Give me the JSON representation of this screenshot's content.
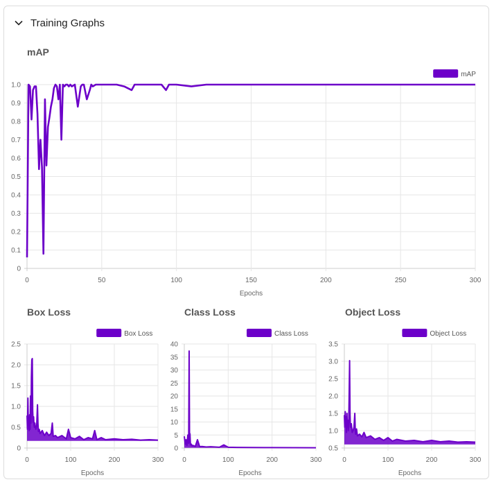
{
  "panel": {
    "title": "Training Graphs"
  },
  "colors": {
    "series": "#6c00c9",
    "grid": "#e6e6e6",
    "axis": "#cccccc"
  },
  "icons": {
    "collapse": "chevron-down-icon"
  },
  "chart_data": [
    {
      "type": "line",
      "title": "mAP",
      "xlabel": "Epochs",
      "ylabel": "",
      "xlim": [
        0,
        300
      ],
      "ylim": [
        0,
        1.0
      ],
      "xticks": [
        0,
        50,
        100,
        150,
        200,
        250,
        300
      ],
      "yticks": [
        0,
        0.1,
        0.2,
        0.3,
        0.4,
        0.5,
        0.6,
        0.7,
        0.8,
        0.9,
        1.0
      ],
      "ytick_labels": [
        "0",
        "0.1",
        "0.2",
        "0.3",
        "0.4",
        "0.5",
        "0.6",
        "0.7",
        "0.8",
        "0.9",
        "1.0"
      ],
      "grid": true,
      "legend": "top-right",
      "series": [
        {
          "name": "mAP",
          "x": [
            0,
            1,
            2,
            3,
            4,
            5,
            6,
            7,
            8,
            9,
            10,
            11,
            12,
            13,
            14,
            15,
            16,
            17,
            18,
            19,
            20,
            21,
            22,
            23,
            24,
            25,
            26,
            27,
            28,
            29,
            30,
            32,
            34,
            36,
            37,
            38,
            40,
            42,
            43,
            44,
            46,
            48,
            50,
            60,
            65,
            70,
            72,
            75,
            80,
            90,
            93,
            95,
            100,
            110,
            120,
            150,
            200,
            250,
            300
          ],
          "y": [
            0.06,
            1.0,
            0.99,
            0.81,
            0.97,
            0.99,
            0.99,
            0.84,
            0.54,
            0.7,
            0.55,
            0.08,
            0.92,
            0.56,
            0.77,
            0.82,
            0.88,
            0.92,
            0.98,
            1.0,
            0.99,
            0.92,
            1.0,
            0.7,
            1.0,
            0.99,
            1.0,
            1.0,
            0.99,
            1.0,
            0.99,
            1.0,
            0.88,
            0.99,
            1.0,
            1.0,
            0.92,
            0.97,
            1.0,
            0.99,
            1.0,
            1.0,
            1.0,
            1.0,
            0.99,
            0.97,
            1.0,
            1.0,
            1.0,
            1.0,
            0.97,
            1.0,
            1.0,
            0.99,
            1.0,
            1.0,
            1.0,
            1.0,
            1.0
          ]
        }
      ]
    },
    {
      "type": "area",
      "title": "Box Loss",
      "xlabel": "Epochs",
      "ylabel": "",
      "xlim": [
        0,
        300
      ],
      "ylim": [
        0,
        2.5
      ],
      "xticks": [
        0,
        100,
        200,
        300
      ],
      "yticks": [
        0,
        0.5,
        1.0,
        1.5,
        2.0,
        2.5
      ],
      "ytick_labels": [
        "0",
        "0.5",
        "1.0",
        "1.5",
        "2.0",
        "2.5"
      ],
      "grid": true,
      "legend": "top-right",
      "series": [
        {
          "name": "Box Loss",
          "x": [
            0,
            1,
            2,
            3,
            4,
            5,
            6,
            7,
            8,
            9,
            10,
            11,
            12,
            13,
            14,
            15,
            16,
            17,
            18,
            20,
            22,
            24,
            25,
            26,
            28,
            30,
            35,
            40,
            45,
            50,
            55,
            58,
            60,
            65,
            70,
            80,
            90,
            95,
            100,
            110,
            120,
            130,
            140,
            150,
            155,
            160,
            170,
            180,
            200,
            220,
            240,
            260,
            280,
            300
          ],
          "y": [
            0.78,
            0.45,
            1.2,
            0.55,
            0.65,
            0.42,
            0.8,
            0.45,
            1.25,
            0.6,
            1.7,
            2.12,
            2.15,
            0.9,
            0.62,
            0.75,
            0.55,
            0.5,
            0.6,
            0.45,
            0.52,
            1.04,
            0.6,
            0.4,
            0.45,
            0.35,
            0.42,
            0.3,
            0.38,
            0.3,
            0.35,
            0.6,
            0.28,
            0.3,
            0.25,
            0.3,
            0.22,
            0.45,
            0.25,
            0.22,
            0.28,
            0.2,
            0.25,
            0.22,
            0.42,
            0.2,
            0.25,
            0.2,
            0.22,
            0.2,
            0.21,
            0.19,
            0.2,
            0.19
          ]
        }
      ]
    },
    {
      "type": "area",
      "title": "Class Loss",
      "xlabel": "Epochs",
      "ylabel": "",
      "xlim": [
        0,
        300
      ],
      "ylim": [
        0,
        40
      ],
      "xticks": [
        0,
        100,
        200,
        300
      ],
      "yticks": [
        0,
        5,
        10,
        15,
        20,
        25,
        30,
        35,
        40
      ],
      "ytick_labels": [
        "0",
        "5",
        "10",
        "15",
        "20",
        "25",
        "30",
        "35",
        "40"
      ],
      "grid": true,
      "legend": "top-right",
      "series": [
        {
          "name": "Class Loss",
          "x": [
            0,
            2,
            4,
            6,
            8,
            10,
            11,
            12,
            13,
            14,
            16,
            18,
            20,
            25,
            30,
            35,
            40,
            50,
            60,
            80,
            90,
            100,
            120,
            150,
            200,
            250,
            300
          ],
          "y": [
            4.5,
            1.5,
            3.2,
            1.0,
            5.0,
            1.8,
            37.3,
            2.2,
            5.5,
            1.2,
            1.5,
            0.8,
            1.0,
            0.6,
            3.2,
            0.5,
            0.6,
            0.4,
            0.5,
            0.3,
            1.2,
            0.3,
            0.25,
            0.2,
            0.15,
            0.12,
            0.1
          ]
        }
      ]
    },
    {
      "type": "area",
      "title": "Object Loss",
      "xlabel": "Epochs",
      "ylabel": "",
      "xlim": [
        0,
        300
      ],
      "ylim": [
        0.5,
        3.5
      ],
      "xticks": [
        0,
        100,
        200,
        300
      ],
      "yticks": [
        0.5,
        1.0,
        1.5,
        2.0,
        2.5,
        3.0,
        3.5
      ],
      "ytick_labels": [
        "0.5",
        "1.0",
        "1.5",
        "2.0",
        "2.5",
        "3.0",
        "3.5"
      ],
      "grid": true,
      "legend": "top-right",
      "series": [
        {
          "name": "Object Loss",
          "x": [
            0,
            1,
            2,
            3,
            4,
            5,
            6,
            7,
            8,
            9,
            10,
            11,
            12,
            13,
            14,
            16,
            18,
            20,
            22,
            24,
            25,
            26,
            28,
            30,
            35,
            40,
            45,
            50,
            60,
            70,
            80,
            90,
            100,
            110,
            120,
            140,
            160,
            180,
            200,
            220,
            240,
            260,
            280,
            300
          ],
          "y": [
            1.45,
            1.1,
            1.55,
            1.2,
            1.4,
            0.95,
            1.5,
            1.1,
            1.3,
            1.0,
            1.2,
            2.0,
            3.02,
            1.5,
            1.1,
            1.2,
            0.95,
            1.0,
            1.1,
            1.5,
            1.0,
            0.9,
            1.05,
            0.85,
            0.9,
            0.82,
            0.95,
            0.8,
            0.85,
            0.75,
            0.8,
            0.72,
            0.8,
            0.7,
            0.75,
            0.7,
            0.72,
            0.68,
            0.72,
            0.68,
            0.7,
            0.67,
            0.68,
            0.67
          ]
        }
      ]
    }
  ]
}
